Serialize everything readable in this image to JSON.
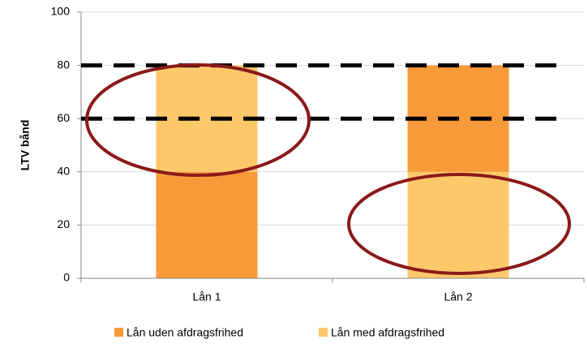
{
  "chart_data": {
    "type": "stacked_bar",
    "categories": [
      "Lån 1",
      "Lån 2"
    ],
    "series": [
      {
        "name": "Lån uden afdragsfrihed",
        "color": "#f79a3a",
        "values": [
          40,
          40
        ]
      },
      {
        "name": "Lån med afdragsfrihed",
        "color": "#fdc86a",
        "values": [
          40,
          40
        ]
      }
    ],
    "stack_order": [
      [
        0,
        1
      ],
      [
        1,
        0
      ]
    ],
    "ylabel": "LTV bånd",
    "ylim": [
      0,
      100
    ],
    "yticks": [
      0,
      20,
      40,
      60,
      80,
      100
    ],
    "reference_lines": [
      60,
      80
    ],
    "grid": true,
    "legend": "bottom"
  }
}
